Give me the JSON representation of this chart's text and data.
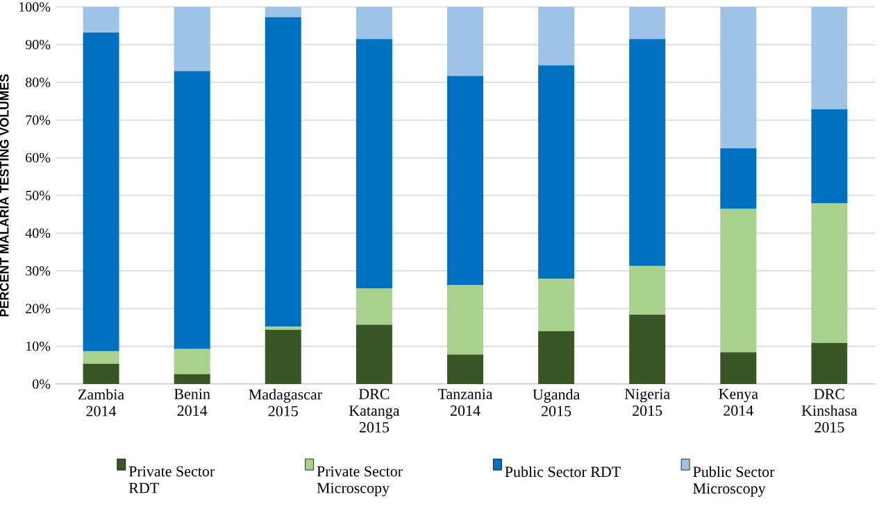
{
  "chart_data": {
    "type": "bar",
    "stacked": true,
    "ylabel": "PERCENT MALARIA TESTING VOLUMES",
    "categories": [
      "Zambia 2014",
      "Benin 2014",
      "Madagascar 2015",
      "DRC Katanga 2015",
      "Tanzania 2014",
      "Uganda 2015",
      "Nigeria 2015",
      "Kenya 2014",
      "DRC Kinshasa 2015"
    ],
    "series": [
      {
        "name": "Private Sector RDT",
        "color": "#375623",
        "values": [
          5.4,
          2.6,
          14.4,
          15.7,
          7.8,
          14.0,
          18.4,
          8.4,
          10.9
        ]
      },
      {
        "name": "Private Sector Microscopy",
        "color": "#a9d18e",
        "values": [
          3.3,
          6.7,
          0.8,
          9.6,
          18.4,
          13.9,
          12.9,
          38.1,
          37.0
        ]
      },
      {
        "name": "Public Sector RDT",
        "color": "#0070c0",
        "values": [
          84.5,
          73.7,
          82.1,
          66.2,
          55.5,
          56.6,
          60.2,
          16.0,
          25.0
        ]
      },
      {
        "name": "Public Sector Microscopy",
        "color": "#9dc3e6",
        "values": [
          6.8,
          17.0,
          2.7,
          8.5,
          18.3,
          15.5,
          8.5,
          37.5,
          27.1
        ]
      }
    ],
    "ylim": [
      0,
      100
    ],
    "yticks": [
      {
        "value": 0,
        "label": "0%"
      },
      {
        "value": 10,
        "label": "10%"
      },
      {
        "value": 20,
        "label": "20%"
      },
      {
        "value": 30,
        "label": "30%"
      },
      {
        "value": 40,
        "label": "40%"
      },
      {
        "value": 50,
        "label": "50%"
      },
      {
        "value": 60,
        "label": "60%"
      },
      {
        "value": 70,
        "label": "70%"
      },
      {
        "value": 80,
        "label": "80%"
      },
      {
        "value": 90,
        "label": "90%"
      },
      {
        "value": 100,
        "label": "100%"
      }
    ],
    "grid": "y",
    "legend": "bottom"
  }
}
